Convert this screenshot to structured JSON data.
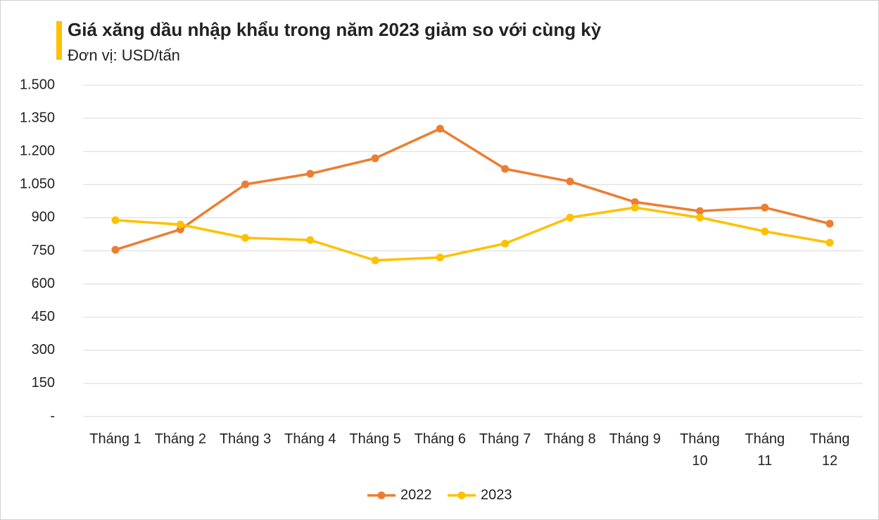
{
  "chart_data": {
    "type": "line",
    "title": "Giá xăng dầu nhập khẩu trong năm 2023 giảm so với cùng kỳ",
    "subtitle": "Đơn vị: USD/tấn",
    "categories": [
      "Tháng 1",
      "Tháng 2",
      "Tháng 3",
      "Tháng 4",
      "Tháng 5",
      "Tháng 6",
      "Tháng 7",
      "Tháng 8",
      "Tháng 9",
      "Tháng 10",
      "Tháng 11",
      "Tháng 12"
    ],
    "series": [
      {
        "name": "2022",
        "color": "#ed7d31",
        "values": [
          755,
          847,
          1051,
          1099,
          1169,
          1303,
          1121,
          1064,
          971,
          930,
          946,
          873
        ]
      },
      {
        "name": "2023",
        "color": "#ffc000",
        "values": [
          889,
          869,
          809,
          799,
          707,
          720,
          783,
          901,
          946,
          901,
          838,
          787
        ]
      }
    ],
    "ylim": [
      0,
      1500
    ],
    "yticks": [
      {
        "value": 0,
        "label": "-"
      },
      150,
      300,
      450,
      600,
      750,
      900,
      {
        "value": 1050,
        "label": "1.050"
      },
      {
        "value": 1200,
        "label": "1.200"
      },
      {
        "value": 1350,
        "label": "1.350"
      },
      {
        "value": 1500,
        "label": "1.500"
      }
    ],
    "grid": true,
    "legend": "bottom"
  }
}
